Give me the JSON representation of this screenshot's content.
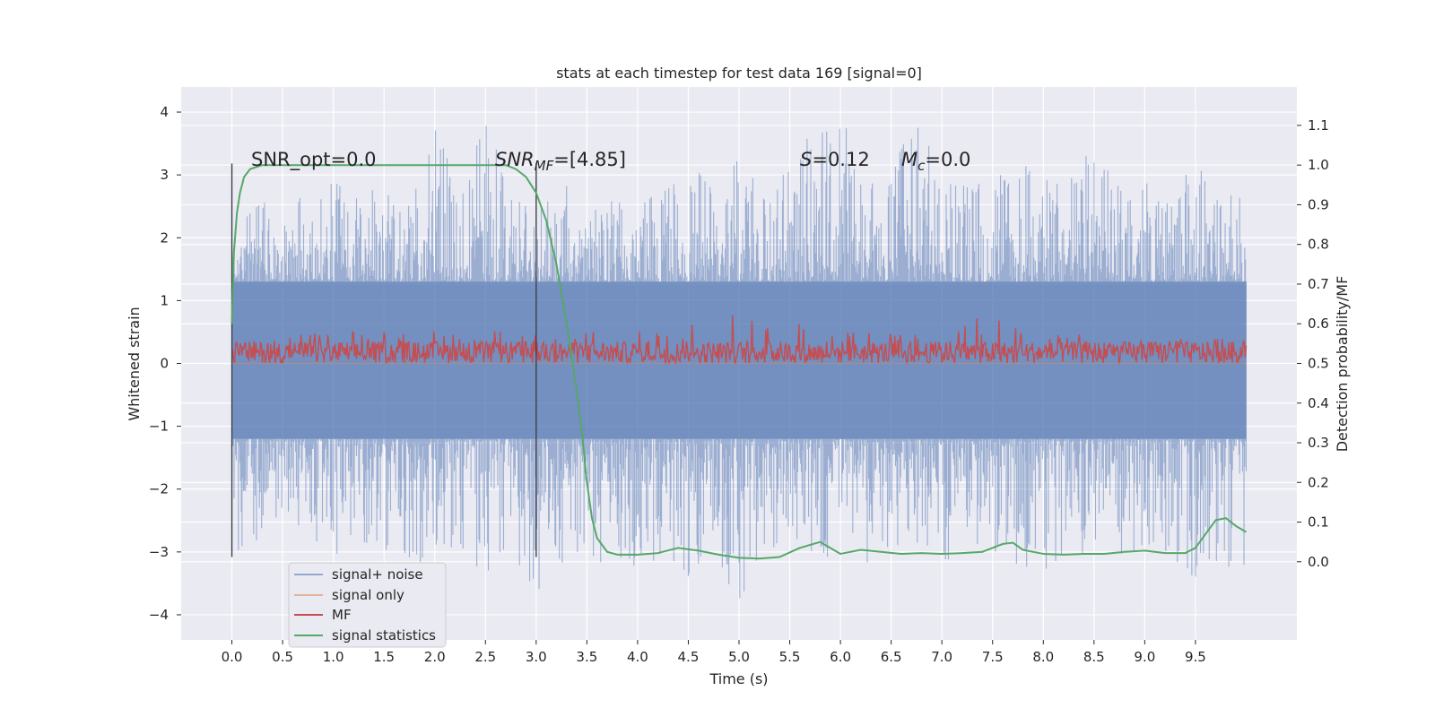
{
  "chart_data": {
    "type": "line",
    "title": "stats at each timestep for test data 169 [signal=0]",
    "xlabel": "Time (s)",
    "ylabel": "Whitened strain",
    "ylabel_right": "Detection probability/MF",
    "xlim": [
      -0.5,
      10.5
    ],
    "ylim": [
      -4.4,
      4.4
    ],
    "ylim_right": [
      -0.197,
      1.197
    ],
    "x_ticks": [
      "0.0",
      "0.5",
      "1.0",
      "1.5",
      "2.0",
      "2.5",
      "3.0",
      "3.5",
      "4.0",
      "4.5",
      "5.0",
      "5.5",
      "6.0",
      "6.5",
      "7.0",
      "7.5",
      "8.0",
      "8.5",
      "9.0",
      "9.5"
    ],
    "y_ticks": [
      "4",
      "3",
      "2",
      "1",
      "0",
      "−1",
      "−2",
      "−3",
      "−4"
    ],
    "y_ticks_right": [
      "1.1",
      "1.0",
      "0.9",
      "0.8",
      "0.7",
      "0.6",
      "0.5",
      "0.4",
      "0.3",
      "0.2",
      "0.1",
      "0.0"
    ],
    "grid": true,
    "legend_position": "lower-left",
    "background_color": "#eaeaf2",
    "annotations": {
      "snr_opt": "SNR_opt=0.0",
      "snr_mf_prefix": "SNR",
      "snr_mf_sub": "MF",
      "snr_mf_value": "=[4.85]",
      "s_symbol": "S",
      "s_value": "=0.12",
      "mc_symbol": "M",
      "mc_sub": "c",
      "mc_value": "=0.0"
    },
    "markers": [
      0.0,
      3.0
    ],
    "series": [
      {
        "name": "signal+ noise",
        "color": "#4c72b0",
        "axis": "left",
        "envelope": {
          "x": [
            0.0,
            0.25,
            0.5,
            0.75,
            1.0,
            1.25,
            1.5,
            1.75,
            2.0,
            2.25,
            2.5,
            2.75,
            3.0,
            3.25,
            3.5,
            3.75,
            4.0,
            4.25,
            4.5,
            4.75,
            5.0,
            5.25,
            5.5,
            5.75,
            6.0,
            6.25,
            6.5,
            6.75,
            7.0,
            7.25,
            7.5,
            7.75,
            8.0,
            8.25,
            8.5,
            8.75,
            9.0,
            9.25,
            9.5,
            9.75,
            10.0
          ],
          "upper": [
            2.1,
            2.5,
            2.7,
            2.6,
            2.9,
            2.6,
            3.0,
            2.5,
            3.8,
            2.7,
            3.9,
            2.8,
            2.4,
            2.9,
            2.5,
            2.7,
            2.6,
            3.0,
            3.2,
            2.8,
            3.4,
            2.6,
            3.3,
            3.7,
            4.0,
            2.9,
            3.1,
            3.9,
            3.0,
            2.8,
            3.1,
            3.3,
            2.9,
            3.1,
            3.4,
            2.8,
            2.9,
            2.8,
            3.2,
            2.6,
            2.8
          ],
          "lower": [
            -3.0,
            -2.9,
            -2.6,
            -2.9,
            -3.1,
            -2.8,
            -3.0,
            -3.3,
            -3.0,
            -2.9,
            -3.4,
            -3.0,
            -3.7,
            -3.2,
            -3.0,
            -3.3,
            -3.2,
            -3.1,
            -3.4,
            -3.3,
            -3.9,
            -3.1,
            -3.0,
            -3.2,
            -3.0,
            -3.2,
            -3.0,
            -2.9,
            -3.2,
            -2.9,
            -3.0,
            -3.2,
            -3.3,
            -3.1,
            -3.0,
            -3.1,
            -3.0,
            -3.2,
            -3.4,
            -3.2,
            -3.3
          ]
        }
      },
      {
        "name": "signal only",
        "color": "#dd8452",
        "axis": "left",
        "values_note": "flat at zero",
        "x": [
          0.0,
          10.0
        ],
        "y": [
          0.0,
          0.0
        ]
      },
      {
        "name": "MF",
        "color": "#c44e52",
        "axis": "right",
        "envelope": {
          "x": [
            0.0,
            1.0,
            2.0,
            2.5,
            3.0,
            4.0,
            4.8,
            5.6,
            6.0,
            7.0,
            7.4,
            8.0,
            9.0,
            10.0
          ],
          "base": [
            0.5,
            0.5,
            0.5,
            0.5,
            0.5,
            0.5,
            0.5,
            0.5,
            0.5,
            0.5,
            0.5,
            0.5,
            0.5,
            0.5
          ],
          "peak": [
            0.56,
            0.58,
            0.59,
            0.6,
            0.58,
            0.58,
            0.62,
            0.65,
            0.58,
            0.57,
            0.63,
            0.57,
            0.58,
            0.56
          ]
        }
      },
      {
        "name": "signal statistics",
        "color": "#55a868",
        "axis": "right",
        "x": [
          0.0,
          0.02,
          0.05,
          0.08,
          0.12,
          0.18,
          0.3,
          0.5,
          1.0,
          2.0,
          2.5,
          2.7,
          2.8,
          2.9,
          3.0,
          3.1,
          3.2,
          3.3,
          3.4,
          3.45,
          3.5,
          3.55,
          3.6,
          3.7,
          3.8,
          4.0,
          4.2,
          4.4,
          4.6,
          4.8,
          5.0,
          5.2,
          5.4,
          5.6,
          5.8,
          6.0,
          6.2,
          6.4,
          6.6,
          6.8,
          7.0,
          7.2,
          7.4,
          7.6,
          7.7,
          7.8,
          8.0,
          8.2,
          8.4,
          8.6,
          8.8,
          9.0,
          9.2,
          9.4,
          9.5,
          9.6,
          9.7,
          9.8,
          9.9,
          10.0
        ],
        "y": [
          0.6,
          0.78,
          0.88,
          0.93,
          0.97,
          0.99,
          1.0,
          1.0,
          1.0,
          1.0,
          1.0,
          1.0,
          0.99,
          0.97,
          0.93,
          0.86,
          0.75,
          0.6,
          0.43,
          0.33,
          0.2,
          0.11,
          0.06,
          0.025,
          0.018,
          0.018,
          0.022,
          0.035,
          0.028,
          0.018,
          0.01,
          0.008,
          0.012,
          0.035,
          0.05,
          0.02,
          0.03,
          0.025,
          0.02,
          0.022,
          0.02,
          0.022,
          0.025,
          0.045,
          0.048,
          0.03,
          0.02,
          0.018,
          0.02,
          0.02,
          0.025,
          0.028,
          0.022,
          0.022,
          0.035,
          0.07,
          0.105,
          0.11,
          0.09,
          0.075
        ]
      }
    ]
  }
}
